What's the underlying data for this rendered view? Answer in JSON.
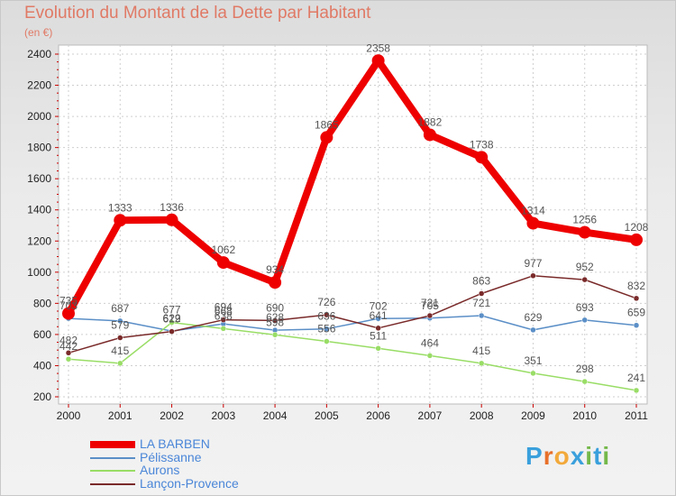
{
  "chart_data": {
    "type": "line",
    "title": "Evolution du Montant de la Dette par Habitant",
    "subtitle": "(en €)",
    "xlabel": "",
    "ylabel": "",
    "ylim": [
      200,
      2400
    ],
    "yticks": [
      200,
      400,
      600,
      800,
      1000,
      1200,
      1400,
      1600,
      1800,
      2000,
      2200,
      2400
    ],
    "categories": [
      "2000",
      "2001",
      "2002",
      "2003",
      "2004",
      "2005",
      "2006",
      "2007",
      "2008",
      "2009",
      "2010",
      "2011"
    ],
    "series": [
      {
        "name": "LA BARBEN",
        "color": "#ee0000",
        "values": [
          735,
          1333,
          1336,
          1062,
          934,
          1865,
          2358,
          1882,
          1738,
          1314,
          1256,
          1208
        ]
      },
      {
        "name": "Pélissanne",
        "color": "#5b8fc7",
        "values": [
          703,
          687,
          622,
          668,
          628,
          636,
          702,
          705,
          721,
          629,
          693,
          659
        ]
      },
      {
        "name": "Aurons",
        "color": "#99dd66",
        "values": [
          442,
          415,
          677,
          638,
          598,
          556,
          511,
          464,
          415,
          351,
          298,
          241
        ]
      },
      {
        "name": "Lançon-Provence",
        "color": "#7a2a2a",
        "values": [
          482,
          579,
          619,
          694,
          690,
          726,
          641,
          721,
          863,
          977,
          952,
          832
        ]
      }
    ]
  },
  "logo": {
    "text": "Proxiti",
    "letters": [
      "P",
      "r",
      "o",
      "x",
      "i",
      "t",
      "i"
    ],
    "colors": [
      "#3aa0dc",
      "#e8702a",
      "#f2a93b",
      "#3aa0dc",
      "#74b84a",
      "#3aa0dc",
      "#74b84a"
    ]
  }
}
